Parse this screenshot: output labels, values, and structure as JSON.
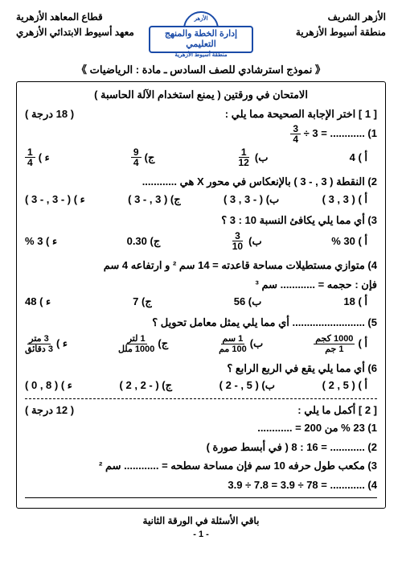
{
  "header": {
    "right1": "الأزهر الشريف",
    "right2": "منطقة أسيوط الأزهرية",
    "left1": "قطاع المعاهد الأزهرية",
    "left2": "معهد أسيوط الابتدائي الأزهري",
    "logo_top": "الأزهر",
    "logo_banner": "إدارة الخطة والمنهج التعليمي",
    "logo_sub": "منطقة أسيوط الأزهرية"
  },
  "title": "《 نموذج استرشادي للصف السادس ـ مادة : الرياضيات 》",
  "exam_title": "الامتحان في ورقتين ( يمنع استخدام الآلة الحاسبة )",
  "s1": {
    "head": "[ 1 ] اختر الإجابة الصحيحة مما يلي :",
    "marks": "( 18 درجة )"
  },
  "q1": {
    "text": "1) ............ = 3 ÷",
    "f": {
      "n": "3",
      "d": "4"
    },
    "a": "أ ) 4",
    "b": "ب)",
    "bn": "1",
    "bd": "12",
    "c": "ج)",
    "cn": "9",
    "cd": "4",
    "d": "ء )",
    "dn": "1",
    "dd": "4"
  },
  "q2": {
    "text": "2) النقطة ( 3 , - 3 ) بالإنعكاس في محور X هي ............",
    "a": "أ ) ( 3 , 3 )",
    "b": "ب) ( - 3 , 3 )",
    "c": "ج) ( 3 , - 3 )",
    "d": "ء ) ( - 3 , - 3 )"
  },
  "q3": {
    "text": "3) أي مما يلي يكافئ النسبة 10 : 3 ؟",
    "a": "أ ) 30 %",
    "b": "ب)",
    "bn": "3",
    "bd": "10",
    "c": "ج) 0.30",
    "d": "ء ) 3 %"
  },
  "q4": {
    "text": "4) متوازي مستطيلات مساحة قاعدته = 14 سم ²  و ارتفاعه 4 سم",
    "sub": "فإن : حجمه = ............ سم ³",
    "a": "أ ) 18",
    "b": "ب) 56",
    "c": "ج) 7",
    "d": "ء ) 48"
  },
  "q5": {
    "text": "5) ......................... أي مما يلي يمثل معامل تحويل ؟",
    "a": "أ )",
    "at": "1000 كجم",
    "ab": "1 جم",
    "b": "ب)",
    "bt": "1 سم",
    "bb": "100 مم",
    "c": "ج)",
    "ct": "1 لتر",
    "cb": "1000 ملل",
    "d": "ء )",
    "dt": "3 متر",
    "db": "3 دقائق"
  },
  "q6": {
    "text": "6) أي مما يلي يقع في الربع الرابع ؟",
    "a": "أ ) ( 5 , 2 )",
    "b": "ب) ( 5 , - 2 )",
    "c": "ج) ( - 2 , 2 )",
    "d": "ء ) ( 8 , 0 )"
  },
  "s2": {
    "head": "[ 2 ] أكمل ما يلي :",
    "marks": "( 12 درجة )"
  },
  "f1": "1) 23 % من 200 = ............",
  "f2": "2) ............ = 16 : 8 ( في أبسط صورة )",
  "f3": "3) مكعب طول حرفه 10 سم فإن مساحة سطحه = ............ سم ²",
  "f4": "4) ............ = 78 ÷ 3.9 = 7.8 ÷ 3.9",
  "footer": "باقي الأسئلة في الورقة الثانية",
  "page": "- 1 -"
}
